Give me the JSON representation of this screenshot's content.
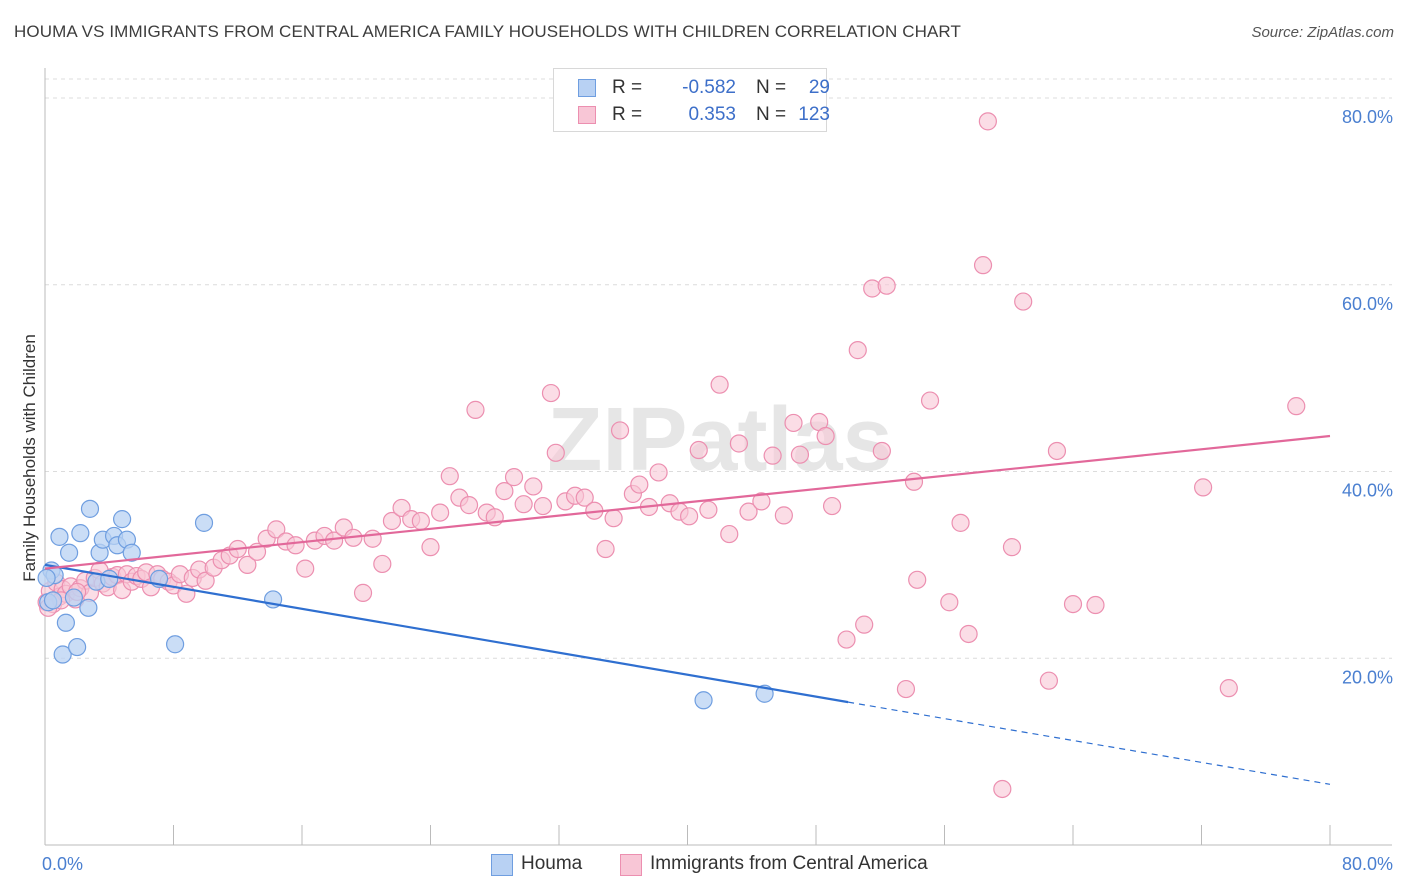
{
  "header": {
    "title": "HOUMA VS IMMIGRANTS FROM CENTRAL AMERICA FAMILY HOUSEHOLDS WITH CHILDREN CORRELATION CHART",
    "source": "Source: ZipAtlas.com"
  },
  "colors": {
    "houma_fill": "#b8d1f3",
    "houma_stroke": "#6f9ee0",
    "houma_line": "#2f6fd0",
    "imm_fill": "#f8c6d6",
    "imm_stroke": "#ec8fb0",
    "imm_line": "#e2689a",
    "axis_label": "#4a7fd0",
    "grid": "#dcdcdc"
  },
  "legend": {
    "houma": {
      "r_label": "R =",
      "r_value": "-0.582",
      "n_label": "N =",
      "n_value": "29"
    },
    "imm": {
      "r_label": "R =",
      "r_value": "0.353",
      "n_label": "N =",
      "n_value": "123"
    }
  },
  "bottom_legend": {
    "houma": "Houma",
    "imm": "Immigrants from Central America"
  },
  "chart_data": {
    "type": "scatter",
    "title": "HOUMA VS IMMIGRANTS FROM CENTRAL AMERICA FAMILY HOUSEHOLDS WITH CHILDREN CORRELATION CHART",
    "xlabel": "",
    "ylabel": "Family Households with Children",
    "xlim": [
      0,
      80
    ],
    "ylim": [
      0,
      83
    ],
    "x_ticks": [
      "0.0%",
      "80.0%"
    ],
    "y_ticks": [
      {
        "value": 20,
        "label": "20.0%"
      },
      {
        "value": 40,
        "label": "40.0%"
      },
      {
        "value": 60,
        "label": "60.0%"
      },
      {
        "value": 80,
        "label": "80.0%"
      }
    ],
    "grid": true,
    "legend_position": "top-center",
    "watermark": "ZIPatlas",
    "series": [
      {
        "name": "Houma",
        "r": -0.582,
        "n": 29,
        "trend": {
          "x0": 0,
          "y0": 30.0,
          "x1": 50,
          "y1": 15.3,
          "dash_to_x": 80,
          "dash_to_y": 6.5
        },
        "points": [
          [
            0.2,
            26.0
          ],
          [
            0.4,
            29.4
          ],
          [
            0.6,
            28.9
          ],
          [
            0.9,
            33.0
          ],
          [
            1.1,
            20.4
          ],
          [
            1.3,
            23.8
          ],
          [
            1.5,
            31.3
          ],
          [
            1.8,
            26.5
          ],
          [
            2.0,
            21.2
          ],
          [
            2.2,
            33.4
          ],
          [
            2.7,
            25.4
          ],
          [
            2.8,
            36.0
          ],
          [
            3.2,
            28.2
          ],
          [
            3.4,
            31.3
          ],
          [
            3.6,
            32.7
          ],
          [
            4.0,
            28.5
          ],
          [
            4.3,
            33.1
          ],
          [
            4.5,
            32.1
          ],
          [
            4.8,
            34.9
          ],
          [
            5.1,
            32.7
          ],
          [
            5.4,
            31.3
          ],
          [
            7.1,
            28.5
          ],
          [
            8.1,
            21.5
          ],
          [
            9.9,
            34.5
          ],
          [
            14.2,
            26.3
          ],
          [
            41.0,
            15.5
          ],
          [
            44.8,
            16.2
          ],
          [
            0.1,
            28.6
          ],
          [
            0.5,
            26.2
          ]
        ]
      },
      {
        "name": "Immigrants from Central America",
        "r": 0.353,
        "n": 123,
        "trend": {
          "x0": 0,
          "y0": 29.6,
          "x1": 80,
          "y1": 43.8
        },
        "points": [
          [
            0.1,
            26.0
          ],
          [
            0.3,
            27.2
          ],
          [
            0.5,
            25.8
          ],
          [
            0.7,
            28.1
          ],
          [
            0.9,
            26.6
          ],
          [
            1.1,
            27.4
          ],
          [
            1.3,
            26.9
          ],
          [
            1.6,
            27.7
          ],
          [
            1.9,
            26.3
          ],
          [
            2.2,
            27.5
          ],
          [
            2.5,
            28.3
          ],
          [
            2.8,
            27.0
          ],
          [
            3.1,
            28.6
          ],
          [
            3.4,
            29.4
          ],
          [
            3.6,
            28.0
          ],
          [
            3.9,
            27.6
          ],
          [
            4.2,
            28.7
          ],
          [
            4.5,
            28.9
          ],
          [
            4.8,
            27.3
          ],
          [
            5.1,
            29.0
          ],
          [
            5.4,
            28.2
          ],
          [
            5.7,
            28.8
          ],
          [
            6.0,
            28.5
          ],
          [
            6.3,
            29.2
          ],
          [
            6.6,
            27.6
          ],
          [
            7.0,
            29.0
          ],
          [
            7.3,
            28.5
          ],
          [
            7.7,
            28.2
          ],
          [
            8.0,
            27.8
          ],
          [
            8.4,
            29.0
          ],
          [
            8.8,
            26.9
          ],
          [
            9.2,
            28.6
          ],
          [
            9.6,
            29.5
          ],
          [
            10.0,
            28.3
          ],
          [
            10.5,
            29.7
          ],
          [
            11.0,
            30.5
          ],
          [
            11.5,
            31.0
          ],
          [
            12.0,
            31.7
          ],
          [
            12.6,
            30.0
          ],
          [
            13.2,
            31.4
          ],
          [
            13.8,
            32.8
          ],
          [
            14.4,
            33.8
          ],
          [
            15.0,
            32.5
          ],
          [
            15.6,
            32.1
          ],
          [
            16.2,
            29.6
          ],
          [
            16.8,
            32.6
          ],
          [
            17.4,
            33.1
          ],
          [
            18.0,
            32.6
          ],
          [
            18.6,
            34.0
          ],
          [
            19.2,
            32.9
          ],
          [
            19.8,
            27.0
          ],
          [
            20.4,
            32.8
          ],
          [
            21.0,
            30.1
          ],
          [
            21.6,
            34.7
          ],
          [
            22.2,
            36.1
          ],
          [
            22.8,
            34.9
          ],
          [
            23.4,
            34.7
          ],
          [
            24.0,
            31.9
          ],
          [
            24.6,
            35.6
          ],
          [
            25.2,
            39.5
          ],
          [
            25.8,
            37.2
          ],
          [
            26.4,
            36.4
          ],
          [
            26.8,
            46.6
          ],
          [
            27.5,
            35.6
          ],
          [
            28.0,
            35.1
          ],
          [
            28.6,
            37.9
          ],
          [
            29.2,
            39.4
          ],
          [
            29.8,
            36.5
          ],
          [
            30.4,
            38.4
          ],
          [
            31.0,
            36.3
          ],
          [
            31.5,
            48.4
          ],
          [
            31.8,
            42.0
          ],
          [
            32.4,
            36.8
          ],
          [
            33.0,
            37.4
          ],
          [
            33.6,
            37.2
          ],
          [
            34.2,
            35.8
          ],
          [
            34.9,
            31.7
          ],
          [
            35.4,
            35.0
          ],
          [
            35.8,
            44.4
          ],
          [
            36.6,
            37.6
          ],
          [
            37.0,
            38.6
          ],
          [
            37.6,
            36.2
          ],
          [
            38.2,
            39.9
          ],
          [
            38.9,
            36.6
          ],
          [
            39.5,
            35.7
          ],
          [
            40.1,
            35.2
          ],
          [
            40.7,
            42.3
          ],
          [
            41.3,
            35.9
          ],
          [
            42.0,
            49.3
          ],
          [
            42.6,
            33.3
          ],
          [
            43.2,
            43.0
          ],
          [
            43.8,
            35.7
          ],
          [
            44.6,
            36.8
          ],
          [
            45.3,
            41.7
          ],
          [
            46.0,
            35.3
          ],
          [
            46.6,
            45.2
          ],
          [
            47.0,
            41.8
          ],
          [
            48.2,
            45.3
          ],
          [
            48.6,
            43.8
          ],
          [
            49.0,
            36.3
          ],
          [
            49.9,
            22.0
          ],
          [
            50.6,
            53.0
          ],
          [
            51.0,
            23.6
          ],
          [
            51.5,
            59.6
          ],
          [
            52.1,
            42.2
          ],
          [
            53.6,
            16.7
          ],
          [
            54.1,
            38.9
          ],
          [
            54.3,
            28.4
          ],
          [
            55.1,
            47.6
          ],
          [
            56.3,
            26.0
          ],
          [
            57.0,
            34.5
          ],
          [
            57.5,
            22.6
          ],
          [
            58.4,
            62.1
          ],
          [
            58.7,
            77.5
          ],
          [
            59.6,
            6.0
          ],
          [
            60.2,
            31.9
          ],
          [
            60.9,
            58.2
          ],
          [
            62.5,
            17.6
          ],
          [
            63.0,
            42.2
          ],
          [
            64.0,
            25.8
          ],
          [
            65.4,
            25.7
          ],
          [
            72.1,
            38.3
          ],
          [
            73.7,
            16.8
          ],
          [
            77.9,
            47.0
          ],
          [
            52.4,
            59.9
          ],
          [
            0.2,
            25.4
          ],
          [
            1.0,
            26.2
          ],
          [
            2.0,
            27.1
          ]
        ]
      }
    ]
  }
}
